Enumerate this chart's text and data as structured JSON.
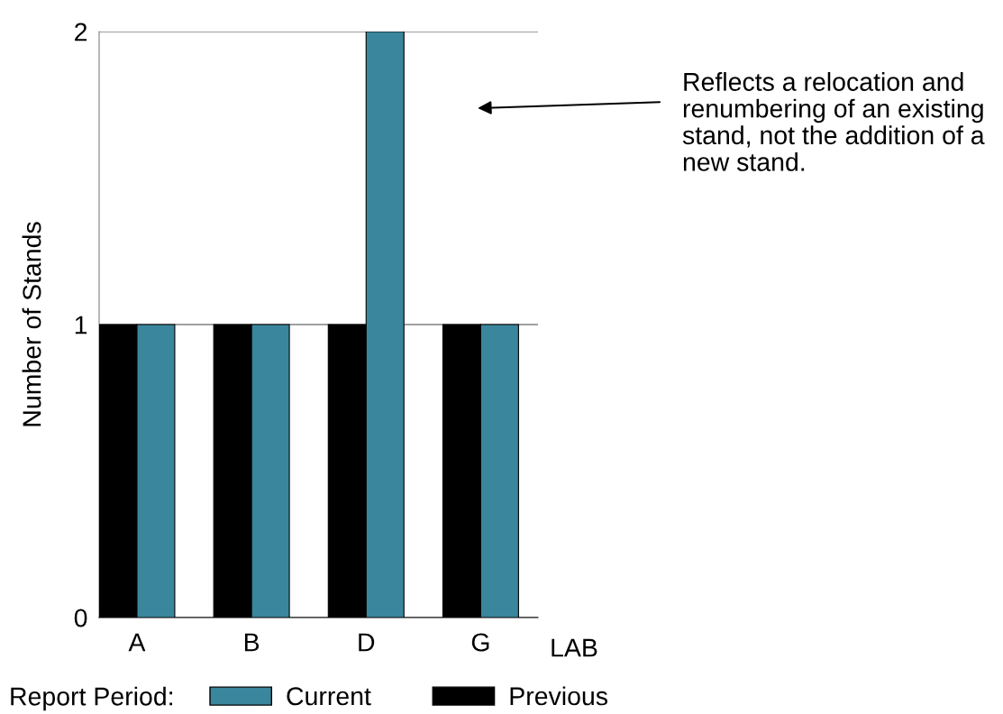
{
  "chart_data": {
    "type": "bar",
    "categories": [
      "A",
      "B",
      "D",
      "G"
    ],
    "series": [
      {
        "name": "Previous",
        "color": "#000000",
        "values": [
          1,
          1,
          1,
          1
        ]
      },
      {
        "name": "Current",
        "color": "#3a869c",
        "values": [
          1,
          1,
          2,
          1
        ]
      }
    ],
    "xlabel": "LAB",
    "ylabel": "Number of Stands",
    "legend_title": "Report Period:",
    "ylim": [
      0,
      2
    ],
    "yticks": [
      0,
      1,
      2
    ],
    "grid": "y",
    "legend": "bottom",
    "annotations": [
      "Reflects a relocation and\nrenumbering of an existing\nstand, not the addition of a\nnew stand."
    ]
  }
}
